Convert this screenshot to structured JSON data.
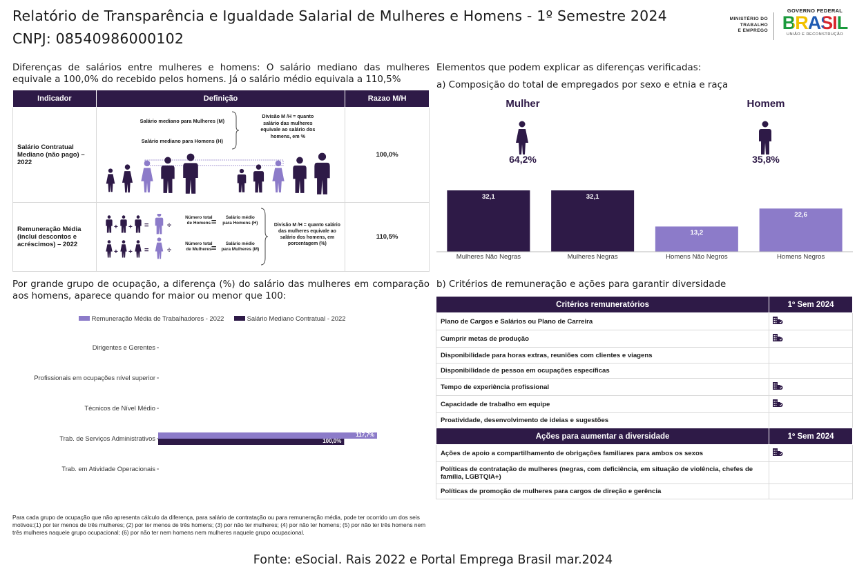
{
  "header": {
    "title": "Relatório de Transparência e Igualdade Salarial de Mulheres e Homens - 1º Semestre 2024",
    "cnpj": "CNPJ: 08540986000102",
    "ministry_lines": [
      "MINISTÉRIO DO",
      "TRABALHO",
      "E EMPREGO"
    ],
    "gov_top": "GOVERNO FEDERAL",
    "gov_brand": "BRASIL",
    "gov_bottom": "UNIÃO E RECONSTRUÇÃO"
  },
  "left": {
    "intro_lines": [
      "Diferenças de salários entre mulheres e homens: O salário mediano das mulheres",
      "equivale a 100,0% do recebido pelos homens. Já o salário médio equivala a 110,5%"
    ],
    "table": {
      "headers": [
        "Indicador",
        "Definição",
        "Razao M/H"
      ],
      "row1": {
        "indicator": "Salário Contratual Mediano (não pago) – 2022",
        "def_line1": "Salário mediano para Mulheres (M)",
        "def_line2": "Salário mediano para Homens (H)",
        "def_note": "Divisão M /H = quanto salário das mulheres equivale ao salário dos homens, em %",
        "value": "100,0%"
      },
      "row2": {
        "indicator": "Remuneração Média (inclui descontos e acréscimos) – 2022",
        "numero_h": "Número total de Homens",
        "salario_h": "Salário médio para Homens (H)",
        "numero_m": "Número total de Mulheres",
        "salario_m": "Salário médio para Mulheres (M)",
        "def_note": "Divisão M /H = quanto salário das mulheres equivale ao salário dos homens, em porcentagem (%)",
        "value": "110,5%"
      }
    },
    "occupation_intro_lines": [
      "Por grande grupo de ocupação, a diferença (%) do salário das mulheres em comparação",
      "aos homens, aparece quando for maior ou menor que 100:"
    ],
    "footnote": "Para cada grupo de ocupação que não apresenta cálculo da diferença, para salário de contratação ou para remuneração média, pode ter ocorrido um dos seis motivos:(1) por ter menos de três mulheres; (2) por ter menos de três homens; (3) por não ter mulheres; (4) por não ter homens; (5) por não ter três homens nem três mulheres naquele grupo ocupacional; (6) por não ter nem homens nem mulheres naquele grupo ocupacional."
  },
  "right": {
    "heading": "Elementos que podem explicar as diferenças verificadas:",
    "sub_a": "a) Composição do total de empregados por sexo e etnia e raça",
    "women_label": "Mulher",
    "women_pct": "64,2%",
    "men_label": "Homem",
    "men_pct": "35,8%",
    "sub_b": "b) Critérios de remuneração e ações para garantir diversidade",
    "criteria_headers": [
      "Critérios remuneratórios",
      "1º Sem 2024"
    ],
    "criteria": [
      {
        "label": "Plano de Cargos e Salários ou Plano de Carreira",
        "checked": true
      },
      {
        "label": "Cumprir metas de produção",
        "checked": true
      },
      {
        "label": "Disponibilidade para horas extras, reuniões com clientes e viagens",
        "checked": false
      },
      {
        "label": "Disponibilidade de pessoa em ocupações específicas",
        "checked": false
      },
      {
        "label": "Tempo de experiência profissional",
        "checked": true
      },
      {
        "label": "Capacidade de trabalho em equipe",
        "checked": true
      },
      {
        "label": "Proatividade, desenvolvimento de ideias e sugestões",
        "checked": false
      }
    ],
    "actions_headers": [
      "Ações para aumentar a diversidade",
      "1º Sem 2024"
    ],
    "actions": [
      {
        "label": "Ações de apoio a compartilhamento de obrigações familiares para ambos os sexos",
        "checked": true
      },
      {
        "label": "Políticas de contratação de mulheres (negras, com deficiência, em situação de violência, chefes de família, LGBTQIA+)",
        "checked": false
      },
      {
        "label": "Políticas de promoção de mulheres para cargos de direção e gerência",
        "checked": false
      }
    ]
  },
  "source": "Fonte: eSocial. Rais 2022 e Portal Emprega Brasil mar.2024",
  "colors": {
    "dark": "#2e1a47",
    "light": "#8c7bc9"
  },
  "chart_data": [
    {
      "type": "bar",
      "title": "Composição do total de empregados por sexo e etnia e raça",
      "categories": [
        "Mulheres Não Negras",
        "Mulheres Negras",
        "Homens Não Negros",
        "Homens Negros"
      ],
      "values": [
        32.1,
        32.1,
        13.2,
        22.6
      ],
      "value_labels": [
        "32,1",
        "32,1",
        "13,2",
        "22,6"
      ],
      "ylim": [
        0,
        32.1
      ]
    },
    {
      "type": "bar",
      "orientation": "horizontal",
      "categories": [
        "Dirigentes e Gerentes",
        "Profissionais em ocupações nível superior",
        "Técnicos de Nível Médio",
        "Trab. de Serviços Administrativos",
        "Trab. em Atividade Operacionais"
      ],
      "series": [
        {
          "name": "Remuneração Média de Trabalhadores - 2022",
          "values": [
            null,
            null,
            null,
            117.7,
            null
          ],
          "labels": [
            "",
            "",
            "",
            "117,7%",
            ""
          ]
        },
        {
          "name": "Salário Mediano Contratual - 2022",
          "values": [
            null,
            null,
            null,
            100.0,
            null
          ],
          "labels": [
            "",
            "",
            "",
            "100,0%",
            ""
          ]
        }
      ],
      "xlim": [
        0,
        117.7
      ]
    }
  ]
}
